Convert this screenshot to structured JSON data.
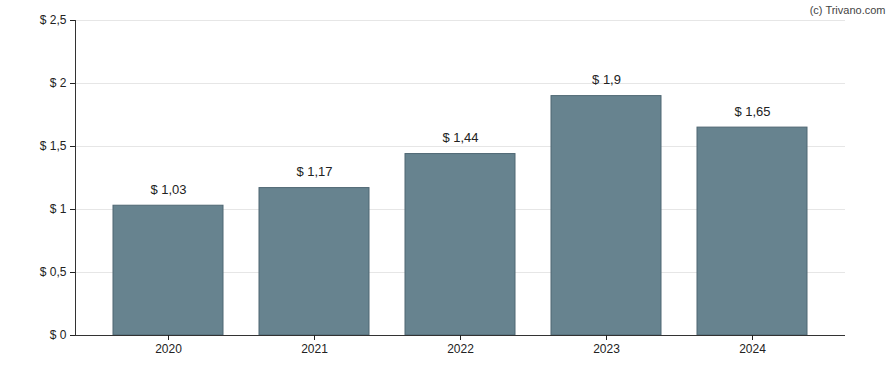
{
  "chart_data": {
    "type": "bar",
    "categories": [
      "2020",
      "2021",
      "2022",
      "2023",
      "2024"
    ],
    "values": [
      1.03,
      1.17,
      1.44,
      1.9,
      1.65
    ],
    "value_labels": [
      "$ 1,03",
      "$ 1,17",
      "$ 1,44",
      "$ 1,9",
      "$ 1,65"
    ],
    "data_labels": true,
    "color": "#67838f",
    "ylim": [
      0,
      2.5
    ],
    "yticks": [
      {
        "value": 0,
        "label": "$ 0"
      },
      {
        "value": 0.5,
        "label": "$ 0,5"
      },
      {
        "value": 1,
        "label": "$ 1"
      },
      {
        "value": 1.5,
        "label": "$ 1,5"
      },
      {
        "value": 2,
        "label": "$ 2"
      },
      {
        "value": 2.5,
        "label": "$ 2,5"
      }
    ],
    "grid": true,
    "annotations": [
      "(c) Trivano.com"
    ]
  }
}
